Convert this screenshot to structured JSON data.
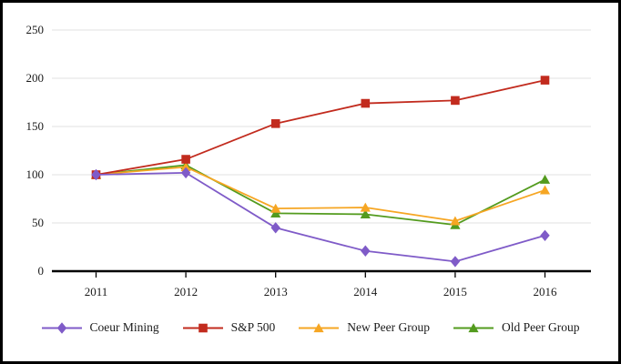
{
  "chart_data": {
    "type": "line",
    "title": "",
    "xlabel": "",
    "ylabel": "",
    "x_labels": [
      "2011",
      "2012",
      "2013",
      "2014",
      "2015",
      "2016"
    ],
    "yticks": [
      0,
      50,
      100,
      150,
      200,
      250
    ],
    "ylim": [
      0,
      250
    ],
    "grid": "horizontal",
    "legend_position": "bottom",
    "series": [
      {
        "name": "Coeur Mining",
        "marker": "diamond",
        "color": "#7F5BC8",
        "values": [
          100,
          102,
          45,
          21,
          10,
          37
        ]
      },
      {
        "name": "S&P 500",
        "marker": "square",
        "color": "#C22B1E",
        "values": [
          100,
          116,
          153,
          174,
          177,
          198
        ]
      },
      {
        "name": "New Peer Group",
        "marker": "triangle",
        "color": "#F6A623",
        "values": [
          100,
          108,
          65,
          66,
          52,
          84
        ]
      },
      {
        "name": "Old Peer Group",
        "marker": "triangle",
        "color": "#539B1E",
        "values": [
          100,
          110,
          60,
          59,
          48,
          95
        ]
      }
    ],
    "colors": {
      "gridline": "#E8E8E8",
      "axis": "#000000",
      "text": "#1a1a1a",
      "background": "#FFFFFF",
      "frame_border": "#000000"
    }
  }
}
